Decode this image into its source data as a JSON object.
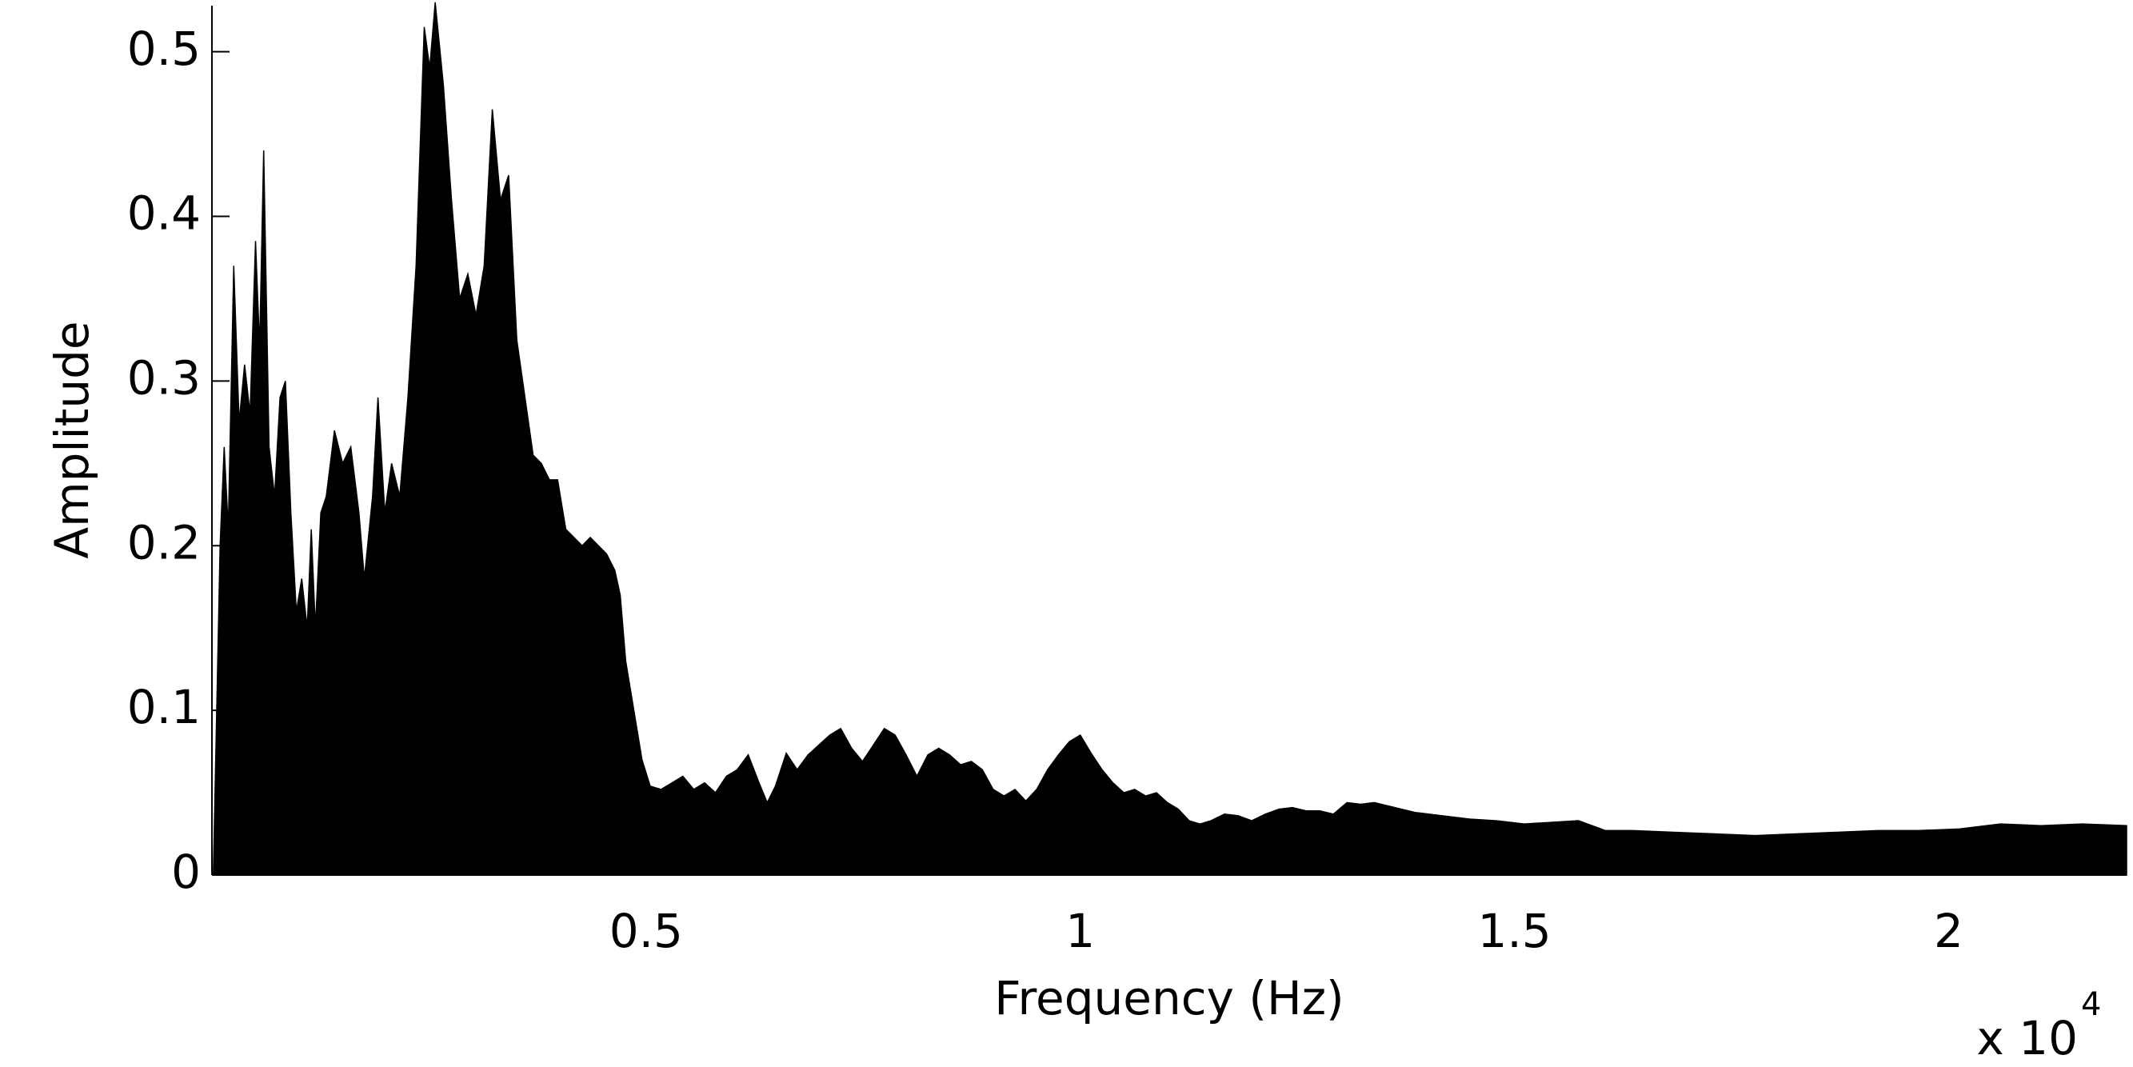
{
  "chart_data": {
    "type": "area",
    "xlabel": "Frequency (Hz)",
    "ylabel": "Amplitude",
    "x_multiplier": "x 10",
    "x_multiplier_exponent": "4",
    "color": "#000000",
    "xlim": [
      0,
      22050
    ],
    "ylim": [
      0,
      0.528
    ],
    "xticks": [
      {
        "value": 5000,
        "label": "0.5"
      },
      {
        "value": 10000,
        "label": "1"
      },
      {
        "value": 15000,
        "label": "1.5"
      },
      {
        "value": 20000,
        "label": "2"
      }
    ],
    "yticks": [
      0,
      0.1,
      0.2,
      0.3,
      0.4,
      0.5
    ],
    "x": [
      16,
      94,
      141,
      188,
      251,
      313,
      376,
      439,
      502,
      549,
      596,
      658,
      721,
      784,
      846,
      909,
      972,
      1034,
      1097,
      1144,
      1191,
      1254,
      1317,
      1411,
      1505,
      1599,
      1693,
      1755,
      1850,
      1912,
      1991,
      2069,
      2163,
      2257,
      2351,
      2445,
      2508,
      2571,
      2665,
      2759,
      2853,
      2947,
      3041,
      3135,
      3229,
      3323,
      3417,
      3511,
      3605,
      3699,
      3793,
      3887,
      3981,
      4075,
      4169,
      4263,
      4357,
      4451,
      4545,
      4640,
      4702,
      4765,
      4859,
      4953,
      5047,
      5172,
      5298,
      5423,
      5549,
      5674,
      5799,
      5925,
      6050,
      6176,
      6301,
      6395,
      6489,
      6614,
      6740,
      6865,
      6991,
      7116,
      7241,
      7367,
      7492,
      7618,
      7743,
      7868,
      7994,
      8119,
      8245,
      8370,
      8495,
      8621,
      8746,
      8872,
      8997,
      9122,
      9248,
      9373,
      9498,
      9624,
      9749,
      9875,
      10000,
      10125,
      10251,
      10376,
      10502,
      10627,
      10752,
      10878,
      11003,
      11129,
      11254,
      11379,
      11505,
      11661,
      11818,
      11975,
      12132,
      12288,
      12445,
      12602,
      12759,
      12915,
      13072,
      13229,
      13386,
      13542,
      13699,
      13856,
      14169,
      14483,
      14796,
      15110,
      15423,
      15737,
      16050,
      16364,
      16834,
      17304,
      17774,
      18245,
      18715,
      19185,
      19655,
      20125,
      20596,
      21066,
      21536,
      22050
    ],
    "values": [
      0,
      0.2,
      0.26,
      0.21,
      0.37,
      0.275,
      0.31,
      0.28,
      0.385,
      0.32,
      0.44,
      0.26,
      0.23,
      0.29,
      0.3,
      0.22,
      0.16,
      0.18,
      0.15,
      0.21,
      0.15,
      0.22,
      0.23,
      0.27,
      0.25,
      0.26,
      0.22,
      0.18,
      0.23,
      0.29,
      0.22,
      0.25,
      0.23,
      0.29,
      0.37,
      0.515,
      0.49,
      0.53,
      0.48,
      0.41,
      0.35,
      0.365,
      0.34,
      0.37,
      0.465,
      0.41,
      0.425,
      0.325,
      0.29,
      0.255,
      0.25,
      0.24,
      0.24,
      0.21,
      0.205,
      0.2,
      0.205,
      0.2,
      0.195,
      0.185,
      0.17,
      0.13,
      0.1,
      0.07,
      0.054,
      0.052,
      0.056,
      0.06,
      0.052,
      0.056,
      0.05,
      0.06,
      0.064,
      0.073,
      0.056,
      0.044,
      0.054,
      0.074,
      0.064,
      0.073,
      0.079,
      0.085,
      0.089,
      0.077,
      0.069,
      0.079,
      0.089,
      0.085,
      0.073,
      0.06,
      0.073,
      0.077,
      0.073,
      0.067,
      0.069,
      0.064,
      0.052,
      0.048,
      0.052,
      0.045,
      0.052,
      0.064,
      0.073,
      0.081,
      0.085,
      0.074,
      0.064,
      0.056,
      0.05,
      0.052,
      0.048,
      0.05,
      0.044,
      0.04,
      0.033,
      0.031,
      0.033,
      0.037,
      0.036,
      0.033,
      0.037,
      0.04,
      0.041,
      0.039,
      0.039,
      0.037,
      0.044,
      0.043,
      0.044,
      0.042,
      0.04,
      0.038,
      0.036,
      0.034,
      0.033,
      0.031,
      0.032,
      0.033,
      0.027,
      0.027,
      0.026,
      0.025,
      0.024,
      0.025,
      0.026,
      0.027,
      0.027,
      0.028,
      0.031,
      0.03,
      0.031,
      0.03
    ]
  }
}
